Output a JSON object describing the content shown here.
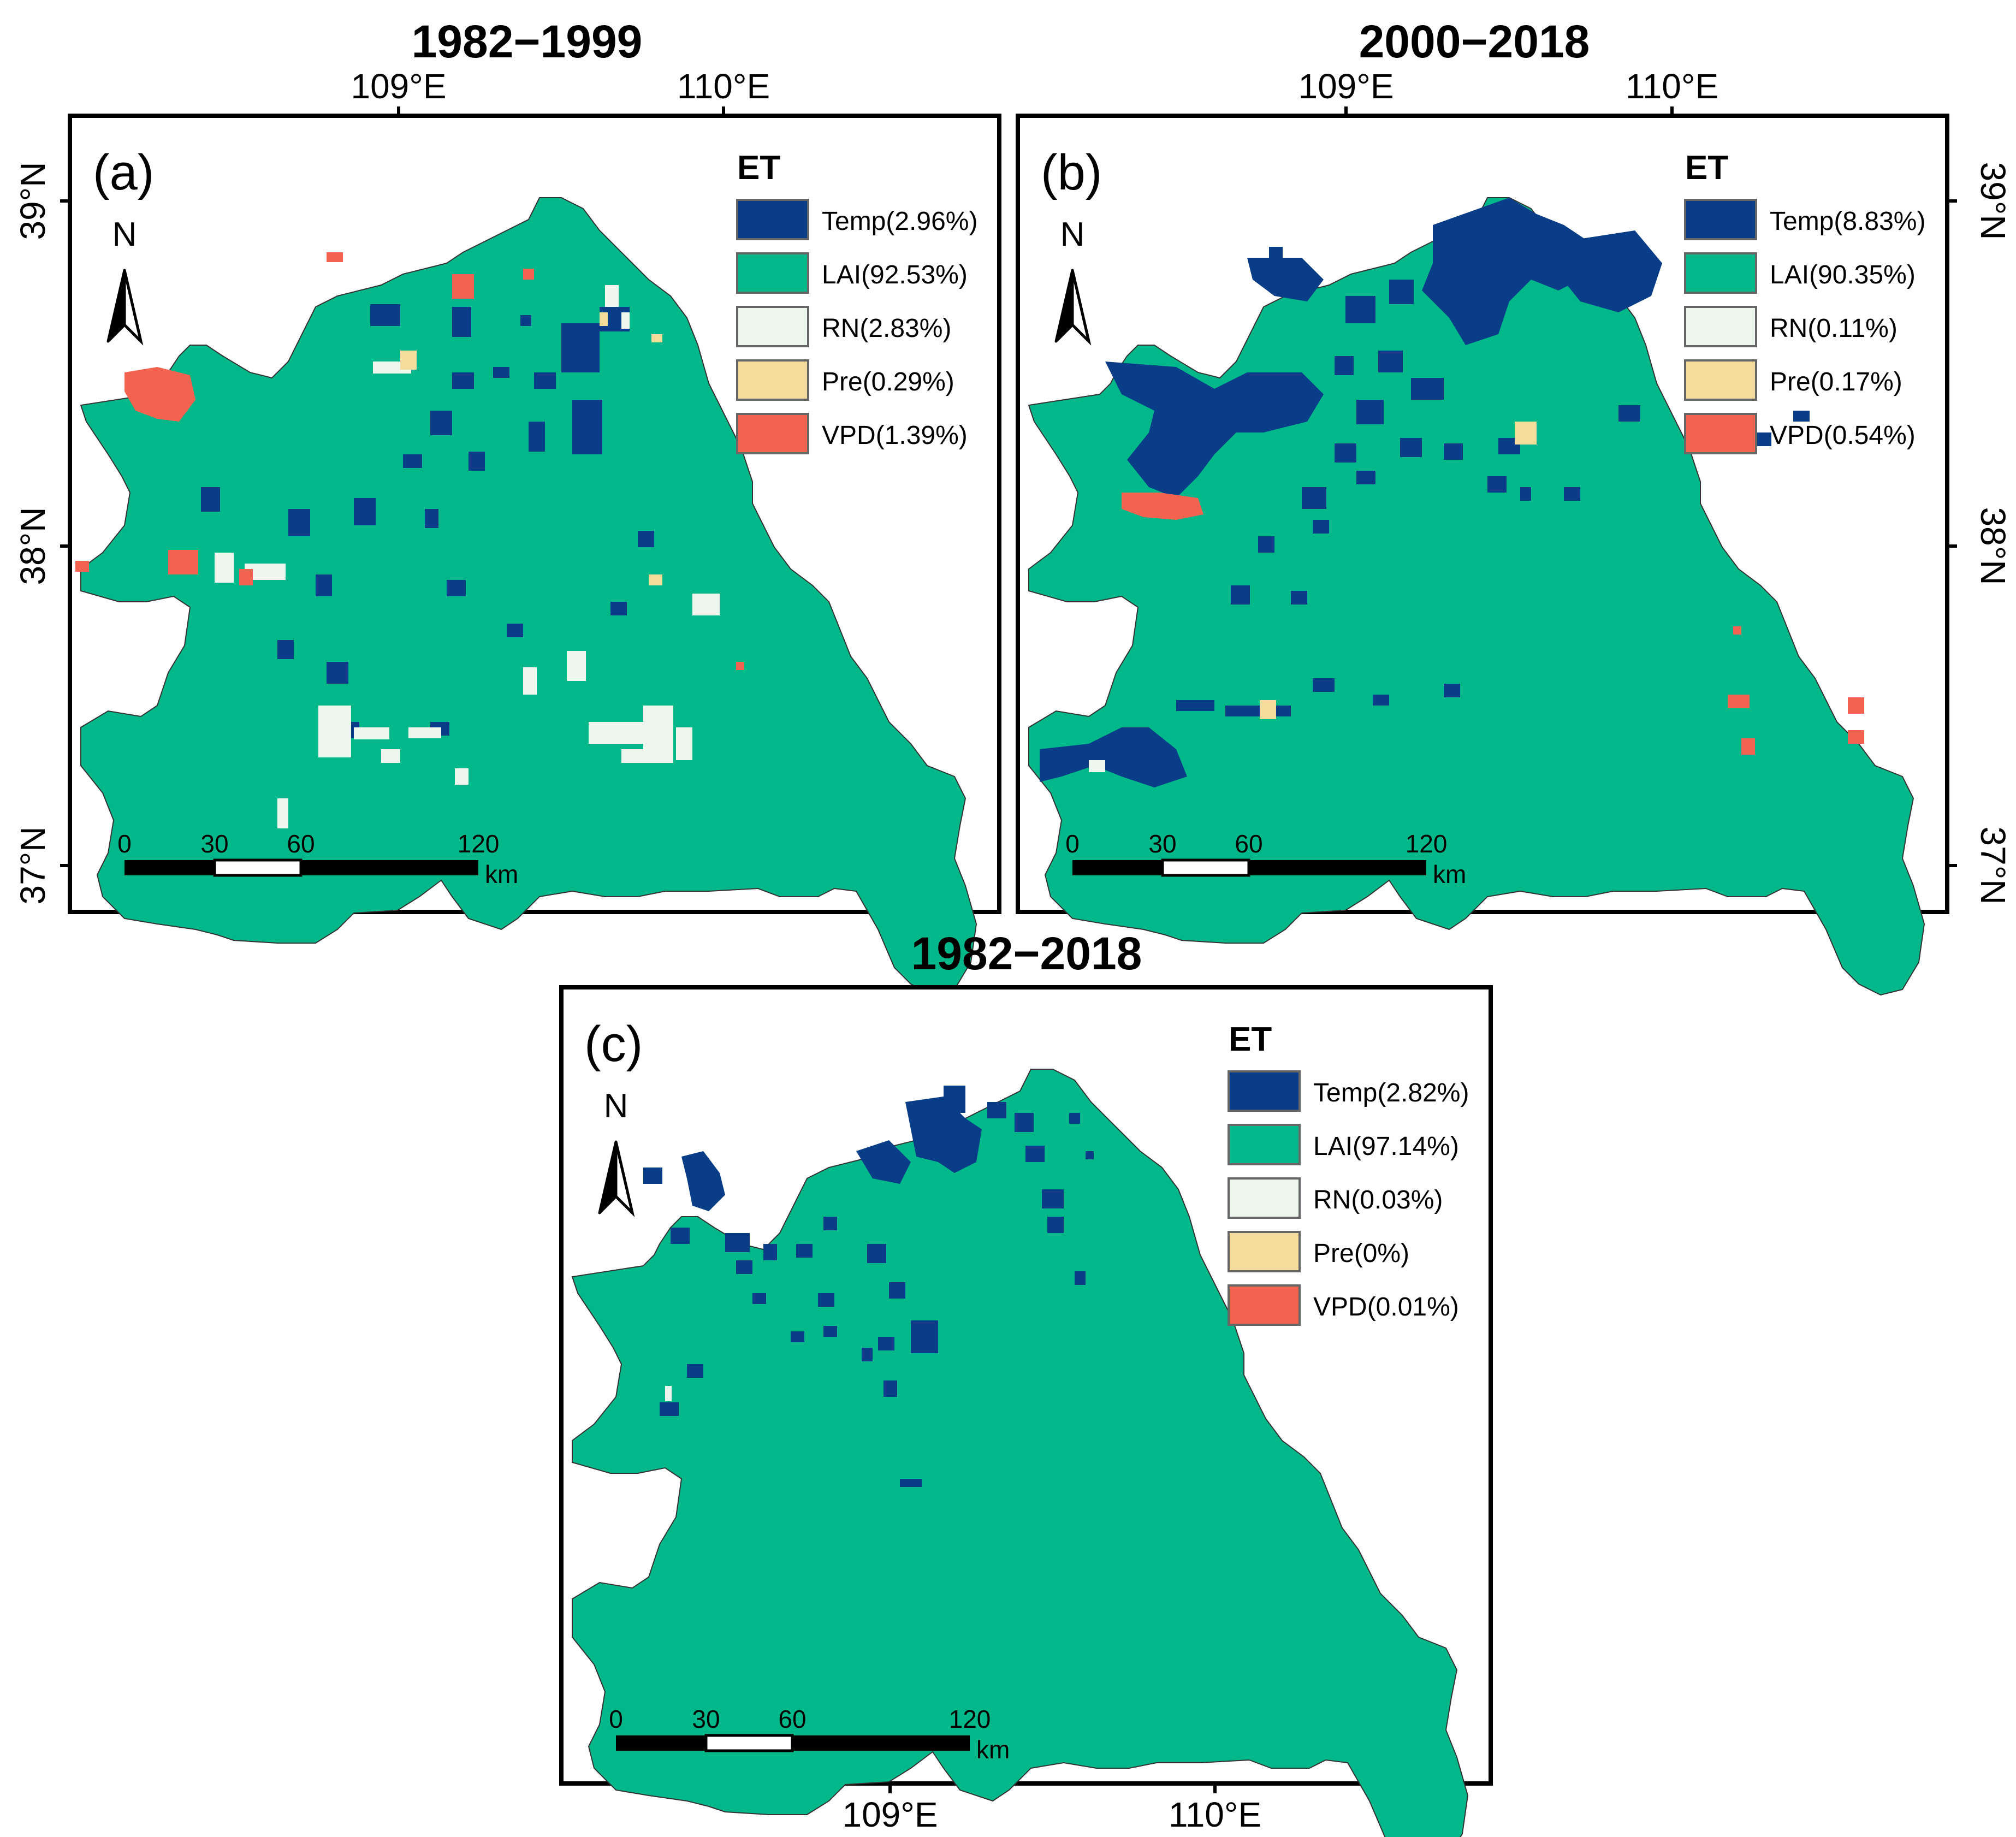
{
  "figure": {
    "legend_title": "ET",
    "north_label": "N",
    "scale": {
      "ticks": [
        "0",
        "30",
        "60",
        "120"
      ],
      "unit": "km"
    },
    "axis_labels": {
      "lon": [
        "109°E",
        "110°E"
      ],
      "lat": [
        "39°N",
        "38°N",
        "37°N"
      ]
    },
    "colors": {
      "Temp": "#0a3d87",
      "LAI": "#00b88a",
      "RN": "#eef7ee",
      "Pre": "#f4dc9c",
      "VPD": "#f4634f"
    },
    "panels": [
      {
        "title": "1982−1999",
        "label": "(a)",
        "legend": [
          {
            "key": "Temp",
            "text": "Temp(2.96%)"
          },
          {
            "key": "LAI",
            "text": "LAI(92.53%)"
          },
          {
            "key": "RN",
            "text": "RN(2.83%)"
          },
          {
            "key": "Pre",
            "text": "Pre(0.29%)"
          },
          {
            "key": "VPD",
            "text": "VPD(1.39%)"
          }
        ]
      },
      {
        "title": "2000−2018",
        "label": "(b)",
        "legend": [
          {
            "key": "Temp",
            "text": "Temp(8.83%)"
          },
          {
            "key": "LAI",
            "text": "LAI(90.35%)"
          },
          {
            "key": "RN",
            "text": "RN(0.11%)"
          },
          {
            "key": "Pre",
            "text": "Pre(0.17%)"
          },
          {
            "key": "VPD",
            "text": "VPD(0.54%)"
          }
        ]
      },
      {
        "title": "1982−2018",
        "label": "(c)",
        "legend": [
          {
            "key": "Temp",
            "text": "Temp(2.82%)"
          },
          {
            "key": "LAI",
            "text": "LAI(97.14%)"
          },
          {
            "key": "RN",
            "text": "RN(0.03%)"
          },
          {
            "key": "Pre",
            "text": "Pre(0%)"
          },
          {
            "key": "VPD",
            "text": "VPD(0.01%)"
          }
        ]
      }
    ]
  }
}
